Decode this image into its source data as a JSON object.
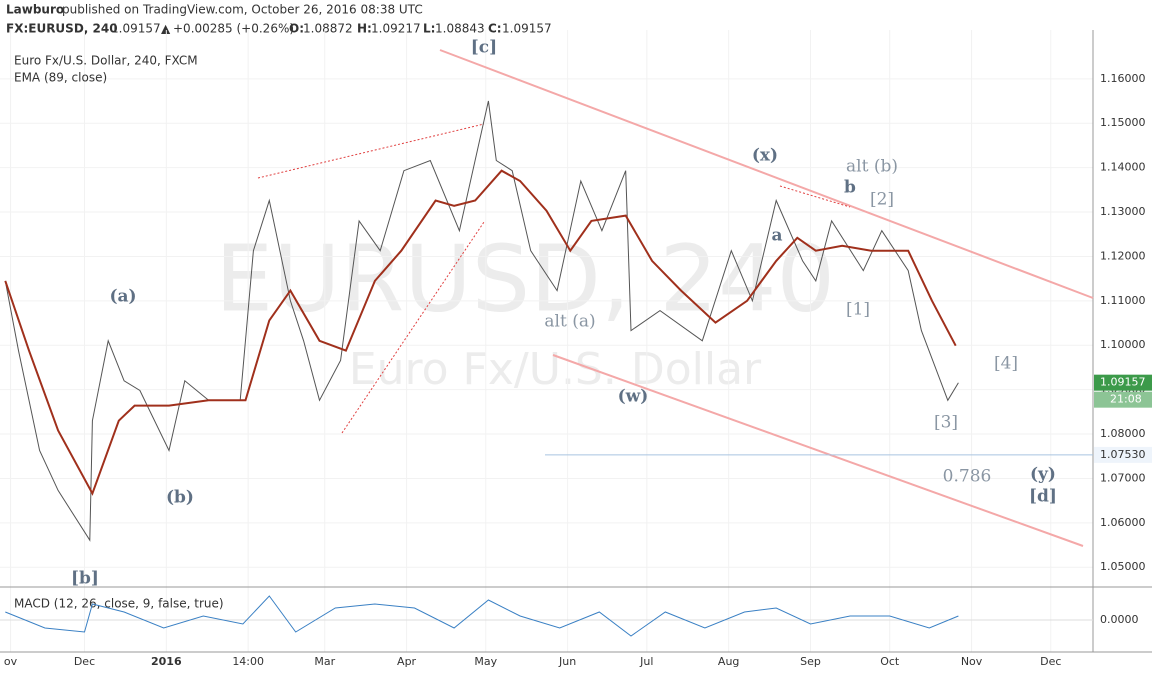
{
  "header": {
    "user": "Lawburo",
    "published": "published on TradingView.com, October 26, 2016 08:38 UTC",
    "symbol": "FX:EURUSD, 240",
    "last": "1.09157",
    "arrow": "▲",
    "change": "+0.00285 (+0.26%)",
    "o_label": "O:",
    "open": "1.08872",
    "h_label": "H:",
    "high": "1.09217",
    "l_label": "L:",
    "low": "1.08843",
    "c_label": "C:",
    "close": "1.09157"
  },
  "chart_data": {
    "type": "line",
    "title": "Euro Fx/U.S. Dollar, 240, FXCM",
    "watermark": "EURUSD, 240",
    "watermark_sub": "Euro Fx/U.S. Dollar",
    "xlim": [
      -2,
      412
    ],
    "ylim": [
      1.046,
      1.171
    ],
    "xticks": [
      {
        "value": 2,
        "label": "ov"
      },
      {
        "value": 30,
        "label": "Dec"
      },
      {
        "value": 61,
        "label": "2016"
      },
      {
        "value": 92,
        "label": "14:00"
      },
      {
        "value": 121,
        "label": "Mar"
      },
      {
        "value": 152,
        "label": "Apr"
      },
      {
        "value": 182,
        "label": "May"
      },
      {
        "value": 213,
        "label": "Jun"
      },
      {
        "value": 243,
        "label": "Jul"
      },
      {
        "value": 274,
        "label": "Aug"
      },
      {
        "value": 305,
        "label": "Sep"
      },
      {
        "value": 335,
        "label": "Oct"
      },
      {
        "value": 366,
        "label": "Nov"
      },
      {
        "value": 396,
        "label": "Dec"
      }
    ],
    "yticks": [
      {
        "value": 1.05,
        "label": "1.05000"
      },
      {
        "value": 1.06,
        "label": "1.06000"
      },
      {
        "value": 1.07,
        "label": "1.07000"
      },
      {
        "value": 1.08,
        "label": "1.08000"
      },
      {
        "value": 1.09,
        "label": "1.09000"
      },
      {
        "value": 1.1,
        "label": "1.10000"
      },
      {
        "value": 1.11,
        "label": "1.11000"
      },
      {
        "value": 1.12,
        "label": "1.12000"
      },
      {
        "value": 1.13,
        "label": "1.13000"
      },
      {
        "value": 1.14,
        "label": "1.14000"
      },
      {
        "value": 1.15,
        "label": "1.15000"
      },
      {
        "value": 1.16,
        "label": "1.16000"
      }
    ],
    "grid": true,
    "last_price": {
      "value": 1.09157,
      "label": "1.09157",
      "time": "21:08"
    },
    "level": {
      "value": 1.0753,
      "label": "1.07530"
    },
    "series": [
      {
        "name": "EURUSD",
        "color": "#555555",
        "x": [
          0,
          5,
          13,
          20,
          32,
          33,
          39,
          45,
          51,
          62,
          68,
          77,
          89,
          94,
          100,
          108,
          113,
          119,
          127,
          134,
          142,
          151,
          161,
          172,
          183,
          186,
          192,
          199,
          209,
          218,
          226,
          235,
          237,
          248,
          264,
          275,
          283,
          292,
          302,
          307,
          313,
          325,
          332,
          342,
          347,
          357,
          361
        ],
        "values": [
          1.1145,
          1.0988,
          1.0763,
          1.0673,
          1.0561,
          1.083,
          1.101,
          1.092,
          1.0898,
          1.0763,
          1.092,
          1.0876,
          1.0876,
          1.1213,
          1.1326,
          1.11,
          1.101,
          1.0876,
          1.0966,
          1.128,
          1.1213,
          1.1393,
          1.1416,
          1.1258,
          1.155,
          1.1416,
          1.1393,
          1.1213,
          1.1123,
          1.137,
          1.1258,
          1.1393,
          1.1033,
          1.1078,
          1.101,
          1.1213,
          1.11,
          1.1326,
          1.119,
          1.1145,
          1.128,
          1.1168,
          1.1258,
          1.1168,
          1.1033,
          1.0876,
          1.09157
        ]
      },
      {
        "name": "EMA (89, close)",
        "color": "#a0301c",
        "x": [
          0,
          9,
          20,
          33,
          43,
          49,
          62,
          77,
          91,
          100,
          108,
          119,
          129,
          140,
          150,
          163,
          170,
          178,
          188,
          195,
          205,
          214,
          222,
          235,
          245,
          256,
          269,
          281,
          292,
          300,
          307,
          317,
          328,
          342,
          351,
          360
        ],
        "values": [
          1.1145,
          1.0988,
          1.0808,
          1.0666,
          1.083,
          1.0864,
          1.0864,
          1.0876,
          1.0876,
          1.1056,
          1.1123,
          1.101,
          1.0988,
          1.1145,
          1.1213,
          1.1326,
          1.1314,
          1.1326,
          1.1393,
          1.137,
          1.1303,
          1.1213,
          1.128,
          1.1292,
          1.119,
          1.1123,
          1.1051,
          1.11,
          1.119,
          1.1242,
          1.1213,
          1.1224,
          1.1213,
          1.1213,
          1.11,
          1.0999
        ]
      }
    ],
    "annotations": [
      "[c]",
      "(x)",
      "alt (b)",
      "b",
      "[2]",
      "a",
      "[1]",
      "(a)",
      "alt (a)",
      "(w)",
      "(b)",
      "[b]",
      "[4]",
      "[3]",
      "0.786",
      "(y)",
      "[d]"
    ],
    "macd": {
      "title": "MACD (12, 26, close, 9, false, true)",
      "ylim": [
        -0.008,
        0.008
      ],
      "yticks": [
        {
          "value": 0,
          "label": "0.0000"
        }
      ],
      "x": [
        0,
        15,
        30,
        33,
        45,
        60,
        75,
        90,
        100,
        110,
        125,
        140,
        155,
        170,
        183,
        195,
        210,
        225,
        237,
        250,
        265,
        280,
        292,
        305,
        320,
        335,
        350,
        361
      ],
      "values": [
        0.002,
        -0.002,
        -0.003,
        0.004,
        0.002,
        -0.002,
        0.001,
        -0.001,
        0.006,
        -0.003,
        0.003,
        0.004,
        0.003,
        -0.002,
        0.005,
        0.001,
        -0.002,
        0.002,
        -0.004,
        0.002,
        -0.002,
        0.002,
        0.003,
        -0.001,
        0.001,
        0.001,
        -0.002,
        0.001
      ],
      "color": "#3a80c4"
    }
  }
}
